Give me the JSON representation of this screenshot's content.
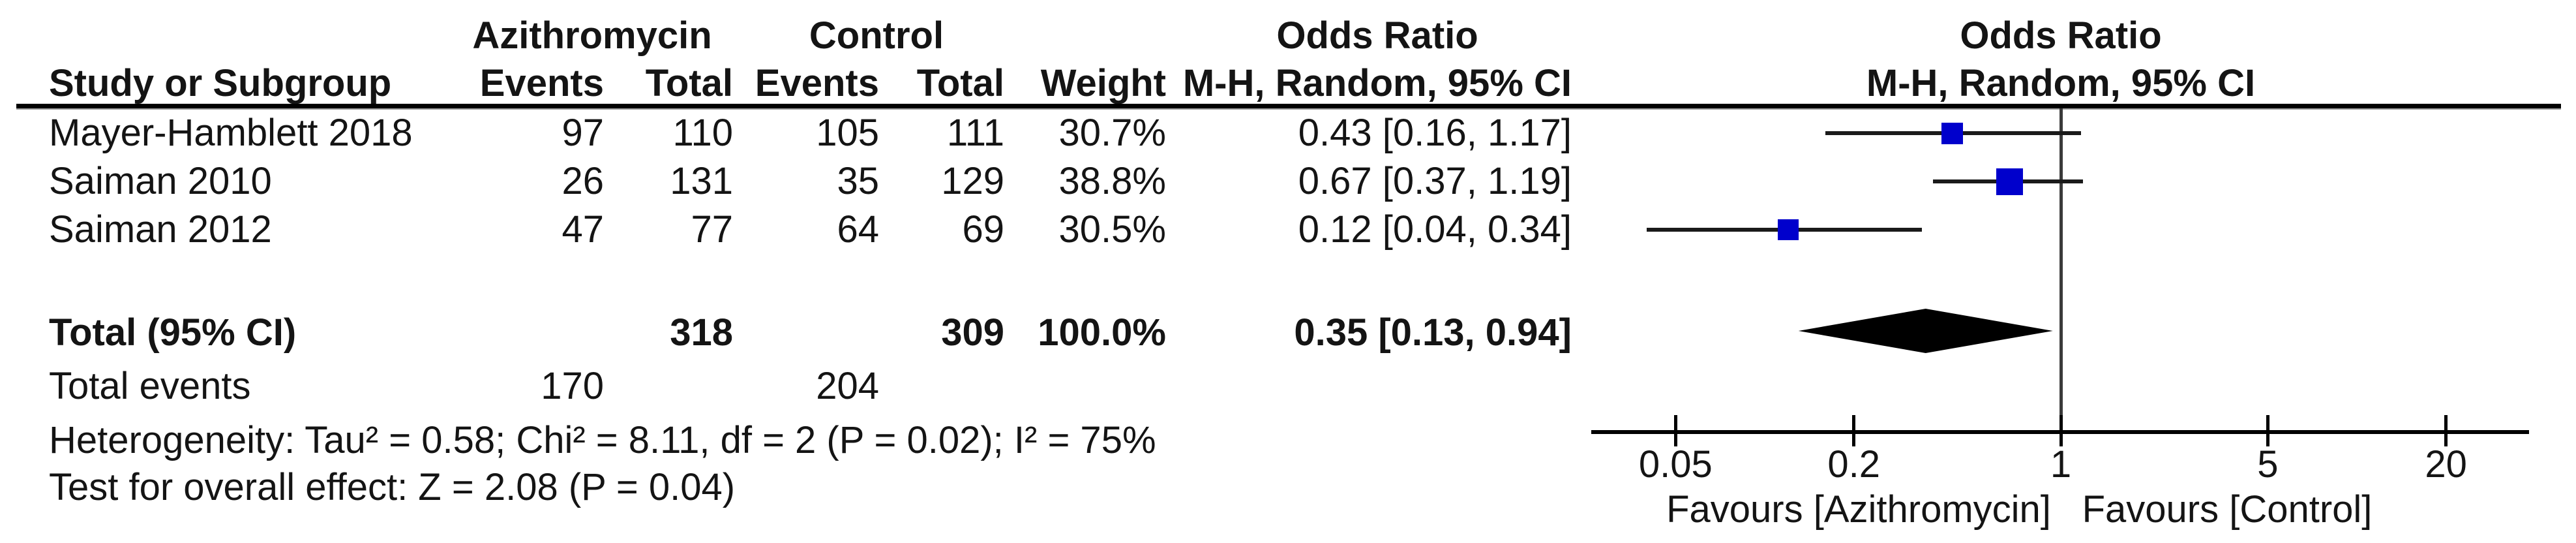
{
  "header": {
    "group1": "Azithromycin",
    "group2": "Control",
    "col_study": "Study or Subgroup",
    "col_events": "Events",
    "col_total": "Total",
    "col_events2": "Events",
    "col_total2": "Total",
    "col_weight": "Weight",
    "or_text_title": "Odds Ratio",
    "or_text_sub": "M-H, Random, 95% CI",
    "or_plot_title": "Odds Ratio",
    "or_plot_sub": "M-H, Random, 95% CI"
  },
  "rows": [
    {
      "study": "Mayer-Hamblett 2018",
      "events_a": "97",
      "total_a": "110",
      "events_c": "105",
      "total_c": "111",
      "weight": "30.7%",
      "or_ci": "0.43 [0.16, 1.17]"
    },
    {
      "study": "Saiman 2010",
      "events_a": "26",
      "total_a": "131",
      "events_c": "35",
      "total_c": "129",
      "weight": "38.8%",
      "or_ci": "0.67 [0.37, 1.19]"
    },
    {
      "study": "Saiman 2012",
      "events_a": "47",
      "total_a": "77",
      "events_c": "64",
      "total_c": "69",
      "weight": "30.5%",
      "or_ci": "0.12 [0.04, 0.34]"
    }
  ],
  "total": {
    "label": "Total (95% CI)",
    "total_a": "318",
    "total_c": "309",
    "weight": "100.0%",
    "or_ci": "0.35 [0.13, 0.94]"
  },
  "total_events": {
    "label": "Total events",
    "events_a": "170",
    "events_c": "204"
  },
  "footnotes": {
    "heterogeneity": "Heterogeneity: Tau² = 0.58; Chi² = 8.11, df = 2 (P = 0.02); I² = 75%",
    "overall_effect": "Test for overall effect: Z = 2.08 (P = 0.04)"
  },
  "chart_data": {
    "type": "forest",
    "x_scale": "log10",
    "null_value": 1,
    "axis_ticks": [
      0.05,
      0.2,
      1,
      5,
      20
    ],
    "axis_tick_labels": [
      "0.05",
      "0.2",
      "1",
      "5",
      "20"
    ],
    "studies": [
      {
        "name": "Mayer-Hamblett 2018",
        "or": 0.43,
        "ci_low": 0.16,
        "ci_high": 1.17,
        "weight_pct": 30.7
      },
      {
        "name": "Saiman 2010",
        "or": 0.67,
        "ci_low": 0.37,
        "ci_high": 1.19,
        "weight_pct": 38.8
      },
      {
        "name": "Saiman 2012",
        "or": 0.12,
        "ci_low": 0.04,
        "ci_high": 0.34,
        "weight_pct": 30.5
      }
    ],
    "total": {
      "or": 0.35,
      "ci_low": 0.13,
      "ci_high": 0.94
    },
    "favours_left": "Favours [Azithromycin]",
    "favours_right": "Favours [Control]",
    "colors": {
      "marker": "#0000CC",
      "diamond": "#000000",
      "ci_line": "#1a1a1a",
      "null_line": "#3a3a3a",
      "axis": "#000000"
    }
  }
}
